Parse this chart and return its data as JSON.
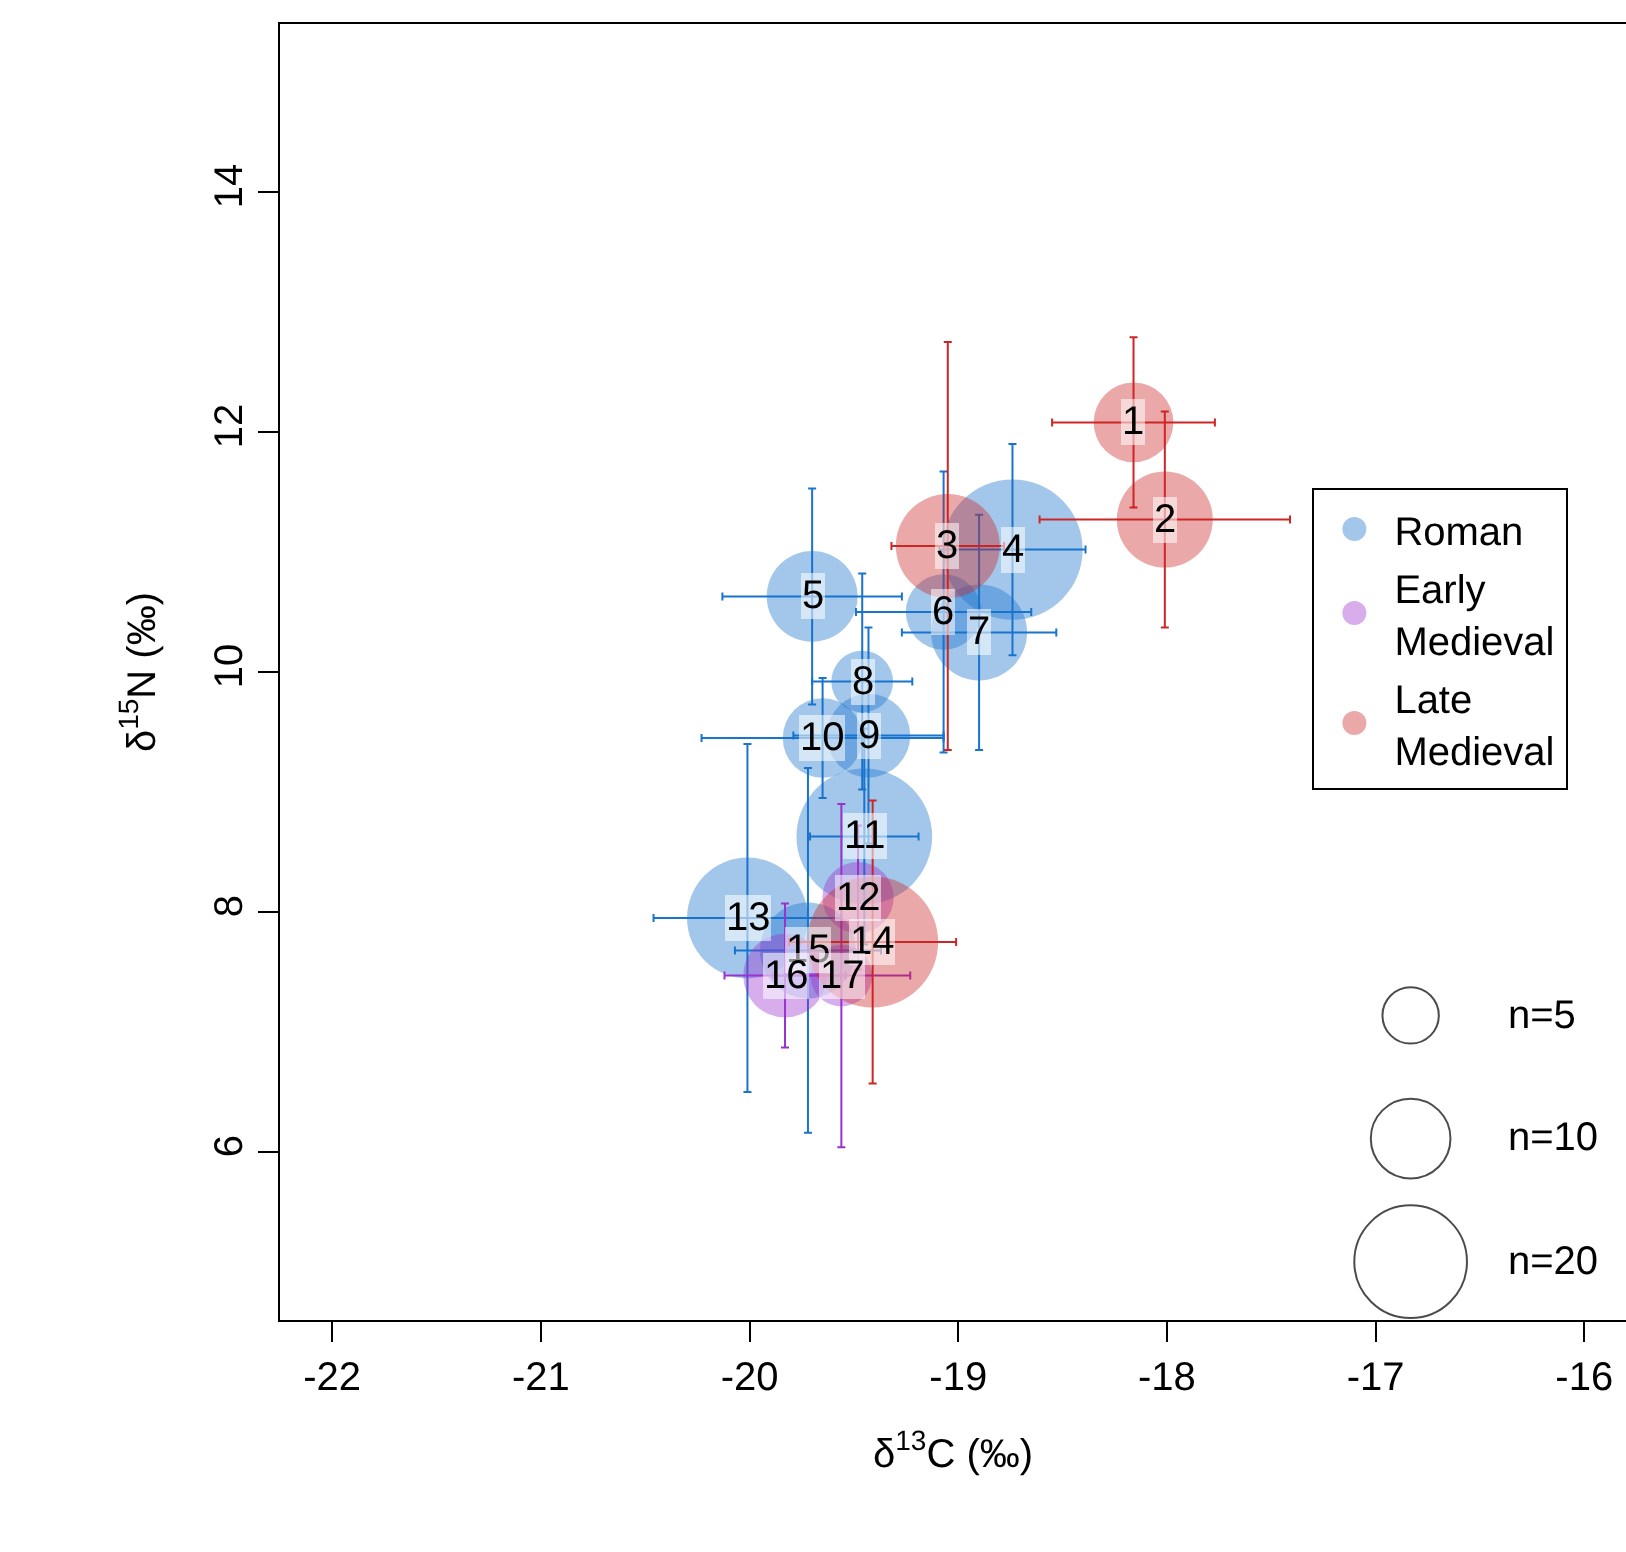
{
  "chart_data": {
    "type": "bubble",
    "xlabel": "δ$^{13}$C (‰)",
    "ylabel": "δ$^{15}$N (‰)",
    "xlim": [
      -22.25,
      -15.8
    ],
    "xticks": [
      -22,
      -21,
      -20,
      -19,
      -18,
      -17,
      -16
    ],
    "ylim": [
      4.6,
      15.4
    ],
    "yticks": [
      6,
      8,
      10,
      12,
      14
    ],
    "legend": "right",
    "size_legend": [
      {
        "value": 5,
        "label": "n=5"
      },
      {
        "value": 10,
        "label": "n=10"
      },
      {
        "value": 20,
        "label": "n=20"
      }
    ],
    "series": [
      {
        "name": "Roman",
        "color": "#1874cd",
        "x": [
          -18.74,
          -19.7,
          -19.07,
          -18.9,
          -19.46,
          -19.43,
          -19.65,
          -19.45,
          -20.01,
          -19.72
        ],
        "values": [
          11.02,
          10.63,
          10.5,
          10.33,
          9.92,
          9.47,
          9.45,
          8.63,
          7.95,
          7.68
        ],
        "sizes": [
          31,
          13,
          9,
          14.5,
          6,
          11,
          10,
          29,
          23,
          14.5
        ],
        "errors": [
          0.88,
          0.9,
          1.17,
          0.98,
          0.9,
          0.9,
          0.5,
          0.9,
          1.45,
          1.52
        ],
        "xerrors": [
          0.35,
          0.43,
          0.42,
          0.37,
          0.24,
          0.36,
          0.58,
          0.26,
          0.45,
          0.35
        ]
      },
      {
        "name": "Early Medieval",
        "color": "#9a32cd",
        "x": [
          -19.48,
          -19.83,
          -19.56
        ],
        "values": [
          8.12,
          7.47,
          7.47
        ],
        "sizes": [
          8,
          11,
          6
        ],
        "errors": [
          0.6,
          0.6,
          1.43
        ],
        "xerrors": [
          null,
          0.29,
          0.33
        ]
      },
      {
        "name": "Late Medieval",
        "color": "#cd2626",
        "x": [
          -18.16,
          -18.01,
          -19.05,
          -19.41
        ],
        "values": [
          12.08,
          11.27,
          11.05,
          7.75
        ],
        "sizes": [
          10,
          14.5,
          17,
          27
        ],
        "errors": [
          0.71,
          0.9,
          1.7,
          1.18
        ],
        "xerrors": [
          0.39,
          0.6,
          0.27,
          0.4
        ]
      }
    ],
    "annotations": [
      {
        "text": "1",
        "x": -18.16,
        "y": 12.08
      },
      {
        "text": "2",
        "x": -18.01,
        "y": 11.27
      },
      {
        "text": "3",
        "x": -19.05,
        "y": 11.05
      },
      {
        "text": "4",
        "x": -18.74,
        "y": 11.02
      },
      {
        "text": "5",
        "x": -19.7,
        "y": 10.63
      },
      {
        "text": "6",
        "x": -19.07,
        "y": 10.5
      },
      {
        "text": "7",
        "x": -18.9,
        "y": 10.33
      },
      {
        "text": "8",
        "x": -19.46,
        "y": 9.92
      },
      {
        "text": "9",
        "x": -19.43,
        "y": 9.47
      },
      {
        "text": "10",
        "x": -19.65,
        "y": 9.45
      },
      {
        "text": "11",
        "x": -19.45,
        "y": 8.63
      },
      {
        "text": "12",
        "x": -19.48,
        "y": 8.12
      },
      {
        "text": "13",
        "x": -20.01,
        "y": 7.95
      },
      {
        "text": "14",
        "x": -19.41,
        "y": 7.75
      },
      {
        "text": "15",
        "x": -19.72,
        "y": 7.68
      },
      {
        "text": "16",
        "x": -19.83,
        "y": 7.47
      },
      {
        "text": "17",
        "x": -19.56,
        "y": 7.47
      }
    ]
  }
}
